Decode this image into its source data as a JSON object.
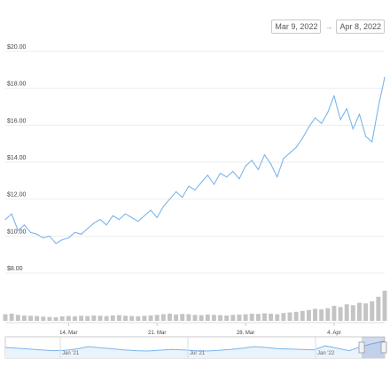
{
  "range": {
    "from": "Mar 9, 2022",
    "to": "Apr 8, 2022",
    "arrow": "→"
  },
  "chart_data": {
    "type": "line",
    "title": "",
    "xlabel": "",
    "ylabel": "",
    "ylim": [
      7.5,
      20.5
    ],
    "y_ticks": [
      "$20.00",
      "$18.00",
      "$16.00",
      "$14.00",
      "$12.00",
      "$10.00",
      "$8.00"
    ],
    "y_tick_values": [
      20,
      18,
      16,
      14,
      12,
      10,
      8
    ],
    "x_ticks": [
      "14. Mar",
      "21. Mar",
      "28. Mar",
      "4. Apr"
    ],
    "x_tick_dates": [
      "2022-03-14",
      "2022-03-21",
      "2022-03-28",
      "2022-04-04"
    ],
    "x_range": [
      "2022-03-09",
      "2022-04-08"
    ],
    "grid": true,
    "series": [
      {
        "color": "#7cb5ec",
        "x": [
          "2022-03-09",
          "2022-03-09T12",
          "2022-03-10",
          "2022-03-10T12",
          "2022-03-11",
          "2022-03-11T12",
          "2022-03-12",
          "2022-03-12T12",
          "2022-03-13",
          "2022-03-13T12",
          "2022-03-14",
          "2022-03-14T12",
          "2022-03-15",
          "2022-03-15T12",
          "2022-03-16",
          "2022-03-16T12",
          "2022-03-17",
          "2022-03-17T12",
          "2022-03-18",
          "2022-03-18T12",
          "2022-03-19",
          "2022-03-19T12",
          "2022-03-20",
          "2022-03-20T12",
          "2022-03-21",
          "2022-03-21T12",
          "2022-03-22",
          "2022-03-22T12",
          "2022-03-23",
          "2022-03-23T12",
          "2022-03-24",
          "2022-03-24T12",
          "2022-03-25",
          "2022-03-25T12",
          "2022-03-26",
          "2022-03-26T12",
          "2022-03-27",
          "2022-03-27T12",
          "2022-03-28",
          "2022-03-28T12",
          "2022-03-29",
          "2022-03-29T12",
          "2022-03-30",
          "2022-03-30T12",
          "2022-03-31",
          "2022-03-31T12",
          "2022-04-01",
          "2022-04-01T12",
          "2022-04-02",
          "2022-04-02T12",
          "2022-04-03",
          "2022-04-03T12",
          "2022-04-04",
          "2022-04-04T12",
          "2022-04-05",
          "2022-04-05T12",
          "2022-04-06",
          "2022-04-06T12",
          "2022-04-07",
          "2022-04-07T12",
          "2022-04-08"
        ],
        "y": [
          10.9,
          11.2,
          10.3,
          10.6,
          10.2,
          10.1,
          9.9,
          10.0,
          9.6,
          9.8,
          9.9,
          10.2,
          10.1,
          10.4,
          10.7,
          10.9,
          10.6,
          11.1,
          10.9,
          11.2,
          11.0,
          10.8,
          11.1,
          11.4,
          11.0,
          11.6,
          12.0,
          12.4,
          12.1,
          12.7,
          12.5,
          12.9,
          13.3,
          12.8,
          13.4,
          13.2,
          13.5,
          13.1,
          13.8,
          14.1,
          13.6,
          14.4,
          13.9,
          13.2,
          14.2,
          14.5,
          14.8,
          15.3,
          15.9,
          16.4,
          16.1,
          16.7,
          17.6,
          16.3,
          16.9,
          15.8,
          16.6,
          15.4,
          15.1,
          17.0,
          18.6
        ]
      }
    ],
    "volume": [
      0.22,
      0.24,
      0.2,
      0.18,
      0.17,
      0.16,
      0.14,
      0.13,
      0.12,
      0.15,
      0.16,
      0.15,
      0.17,
      0.16,
      0.18,
      0.17,
      0.16,
      0.18,
      0.19,
      0.17,
      0.16,
      0.15,
      0.17,
      0.18,
      0.2,
      0.22,
      0.24,
      0.21,
      0.23,
      0.22,
      0.2,
      0.19,
      0.21,
      0.2,
      0.19,
      0.18,
      0.2,
      0.21,
      0.22,
      0.24,
      0.23,
      0.25,
      0.24,
      0.22,
      0.26,
      0.28,
      0.3,
      0.33,
      0.36,
      0.4,
      0.38,
      0.42,
      0.5,
      0.46,
      0.55,
      0.52,
      0.6,
      0.58,
      0.65,
      0.8,
      1.0
    ],
    "navigator": {
      "labels": [
        "Jan '21",
        "Jul '21",
        "Jan '22"
      ],
      "values": [
        0.5,
        0.45,
        0.4,
        0.35,
        0.3,
        0.32,
        0.4,
        0.55,
        0.48,
        0.42,
        0.35,
        0.3,
        0.28,
        0.33,
        0.38,
        0.35,
        0.3,
        0.28,
        0.32,
        0.38,
        0.45,
        0.55,
        0.5,
        0.42,
        0.4,
        0.38,
        0.35,
        0.6,
        0.45,
        0.3,
        0.55,
        0.75,
        0.9
      ]
    }
  }
}
